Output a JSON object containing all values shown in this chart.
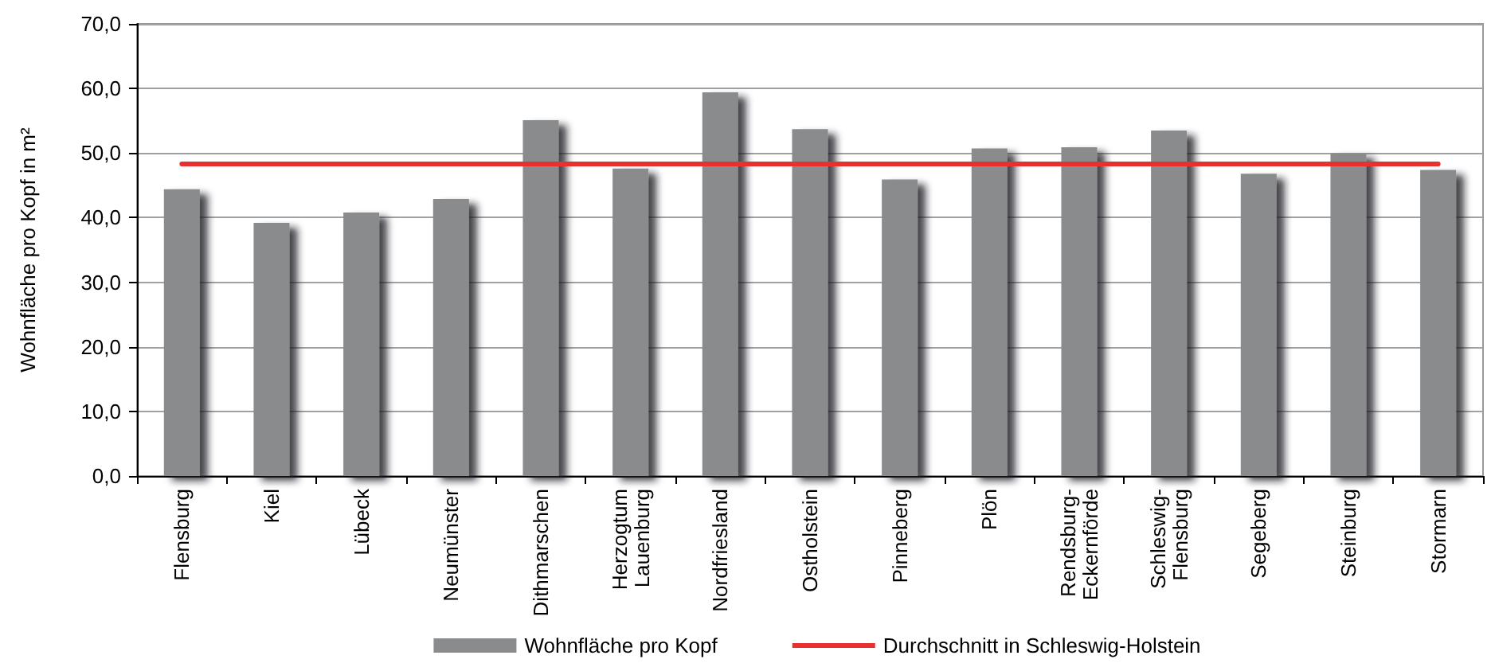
{
  "chart_data": {
    "type": "bar",
    "ylabel": "Wohnfläche pro Kopf in m²",
    "categories": [
      "Flensburg",
      "Kiel",
      "Lübeck",
      "Neumünster",
      "Dithmarschen",
      "Herzogtum Lauenburg",
      "Nordfriesland",
      "Ostholstein",
      "Pinneberg",
      "Plön",
      "Rendsburg-Eckernförde",
      "Schleswig-Flensburg",
      "Segeberg",
      "Steinburg",
      "Stormarn"
    ],
    "series": [
      {
        "name": "Wohnfläche pro Kopf",
        "color": "#898b8d",
        "values": [
          44.4,
          39.2,
          40.8,
          42.9,
          55.1,
          47.6,
          59.4,
          53.7,
          45.9,
          50.7,
          50.9,
          53.5,
          46.8,
          50.0,
          47.4
        ]
      },
      {
        "name": "Durchschnitt in Schleswig-Holstein",
        "type": "line",
        "color": "#e8302e",
        "values": [
          48.3,
          48.3,
          48.3,
          48.3,
          48.3,
          48.3,
          48.3,
          48.3,
          48.3,
          48.3,
          48.3,
          48.3,
          48.3,
          48.3,
          48.3
        ]
      }
    ],
    "ylim": [
      0,
      70
    ],
    "yticks": [
      {
        "value": 0,
        "label": "0,0"
      },
      {
        "value": 10,
        "label": "10,0"
      },
      {
        "value": 20,
        "label": "20,0"
      },
      {
        "value": 30,
        "label": "30,0"
      },
      {
        "value": 40,
        "label": "40,0"
      },
      {
        "value": 50,
        "label": "50,0"
      },
      {
        "value": 60,
        "label": "60,0"
      },
      {
        "value": 70,
        "label": "70,0"
      }
    ],
    "grid": "y",
    "legend": "bottom"
  }
}
